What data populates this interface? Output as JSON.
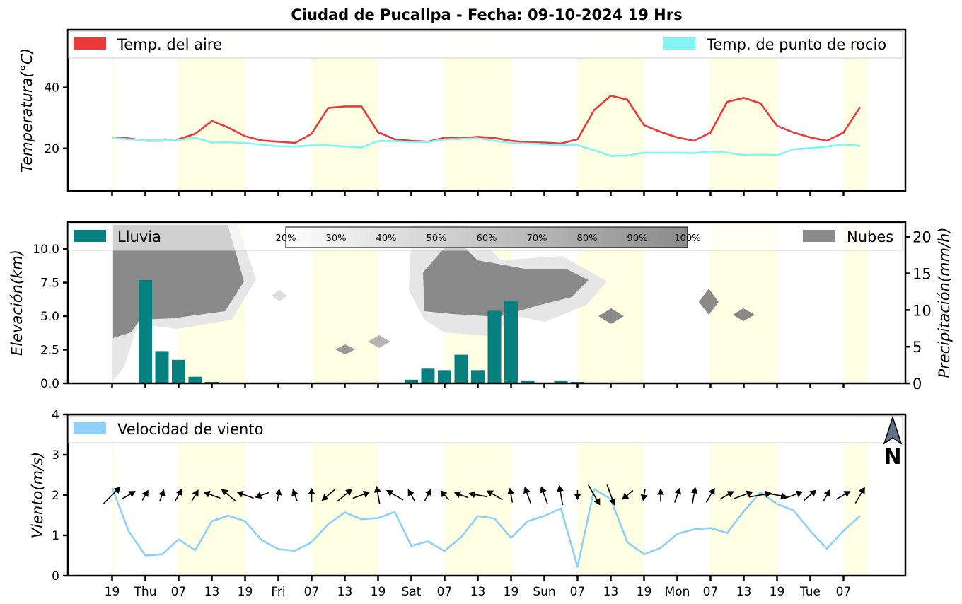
{
  "title": "Ciudad de Pucallpa   -   Fecha: 09-10-2024 19 Hrs",
  "x_tick_labels": [
    "19",
    "Thu",
    "07",
    "13",
    "19",
    "Fri",
    "07",
    "13",
    "19",
    "Sat",
    "07",
    "13",
    "19",
    "Sun",
    "07",
    "13",
    "19",
    "Mon",
    "07",
    "13",
    "19",
    "Tue",
    "07"
  ],
  "colors": {
    "air_temp": "#e83a3a",
    "dew_point": "#84f5f5",
    "rain": "#088080",
    "clouds": "#8a8a8a",
    "wind": "#8fd0f8",
    "daytime_band": "#ffffe0"
  },
  "chart_data": [
    {
      "type": "line",
      "name": "temperature",
      "ylabel": "Temperatura(°C)",
      "ylim": [
        6,
        59
      ],
      "yticks": [
        "20",
        "40"
      ],
      "legend": {
        "left": "Temp. del aire",
        "right": "Temp. de punto de rocio",
        "placement": "top"
      },
      "series": [
        {
          "name": "Temp. del aire",
          "values": [
            23.5,
            23.3,
            22.5,
            22.5,
            23,
            24.8,
            29,
            26.8,
            24,
            22.6,
            22.2,
            21.8,
            24.8,
            33.3,
            33.8,
            33.8,
            25.3,
            23,
            22.5,
            22.2,
            23.5,
            23.3,
            23.8,
            23.4,
            22.5,
            22,
            21.9,
            21.6,
            23,
            32.6,
            37.3,
            36,
            27.6,
            25.4,
            23.6,
            22.5,
            25.2,
            35.3,
            36.6,
            34.8,
            27.4,
            25.2,
            23.6,
            22.5,
            25.2,
            33.6
          ]
        },
        {
          "name": "Temp. de punto de rocio",
          "values": [
            23.4,
            23,
            22.7,
            22.6,
            22.8,
            23.5,
            21.9,
            22,
            21.8,
            21.2,
            20.7,
            20.6,
            21,
            21,
            20.6,
            20.3,
            22.4,
            22.4,
            22.1,
            22.1,
            23,
            23.1,
            23.3,
            22.5,
            21.8,
            21.6,
            21.4,
            21,
            21.1,
            19.4,
            17.5,
            17.6,
            18.6,
            18.5,
            18.6,
            18.4,
            19,
            18.6,
            17.8,
            17.9,
            17.8,
            19.7,
            20.1,
            20.6,
            21.3,
            20.8
          ]
        }
      ]
    },
    {
      "type": "bar",
      "name": "precipitation_and_clouds",
      "ylabel_left": "Elevación(km)",
      "ylabel_right": "Precipitación(mm/h)",
      "ylim_left": [
        0,
        12
      ],
      "ylim_right": [
        0,
        22
      ],
      "yticks_left": [
        "0.0",
        "2.5",
        "5.0",
        "7.5",
        "10.0"
      ],
      "yticks_right": [
        "0",
        "5",
        "10",
        "15",
        "20"
      ],
      "legend": {
        "left": "Lluvia",
        "right": "Nubes",
        "placement": "top"
      },
      "colorbar_labels": [
        "20%",
        "30%",
        "40%",
        "50%",
        "60%",
        "70%",
        "80%",
        "90%",
        "100%"
      ],
      "rain_values": [
        0,
        14.1,
        4.4,
        3.2,
        0.9,
        0.2,
        0,
        0,
        0,
        0,
        0,
        0,
        0,
        0,
        0,
        0,
        0,
        0.5,
        2,
        1.8,
        3.9,
        1.8,
        9.9,
        11.3,
        0.4,
        0,
        0.4,
        0.2,
        0,
        0,
        0,
        0,
        0,
        0,
        0,
        0,
        0,
        0,
        0,
        0,
        0,
        0,
        0,
        0,
        0,
        0
      ],
      "cloud_layers": [
        {
          "name": "cloud-mass-day1",
          "coverage": 1.0
        },
        {
          "name": "cloud-mass-sat-sun",
          "coverage": 1.0
        },
        {
          "name": "cloud-spots",
          "coverage": 0.8
        }
      ]
    },
    {
      "type": "line",
      "name": "wind",
      "ylabel": "Viento(m/s)",
      "ylim": [
        0,
        4
      ],
      "yticks": [
        "0",
        "1",
        "2",
        "3",
        "4"
      ],
      "legend": {
        "left": "Velocidad de viento",
        "placement": "top-left"
      },
      "north_label": "N",
      "series": [
        {
          "name": "Velocidad de viento",
          "values": [
            2.18,
            1.1,
            0.5,
            0.53,
            0.9,
            0.63,
            1.35,
            1.49,
            1.35,
            0.88,
            0.66,
            0.62,
            0.83,
            1.28,
            1.57,
            1.4,
            1.43,
            1.58,
            0.74,
            0.85,
            0.61,
            0.96,
            1.48,
            1.42,
            0.94,
            1.35,
            1.48,
            1.67,
            0.22,
            2.15,
            1.9,
            0.83,
            0.53,
            0.69,
            1.04,
            1.15,
            1.18,
            1.06,
            1.6,
            2.07,
            1.78,
            1.62,
            1.11,
            0.67,
            1.12,
            1.48
          ]
        }
      ],
      "wind_direction_deg": [
        315,
        330,
        300,
        290,
        300,
        300,
        200,
        220,
        200,
        160,
        280,
        250,
        270,
        140,
        320,
        340,
        260,
        210,
        240,
        300,
        230,
        200,
        190,
        210,
        260,
        250,
        250,
        260,
        90,
        60,
        70,
        140,
        100,
        270,
        290,
        280,
        300,
        330,
        340,
        350,
        10,
        340,
        320,
        300,
        330,
        300
      ]
    }
  ]
}
